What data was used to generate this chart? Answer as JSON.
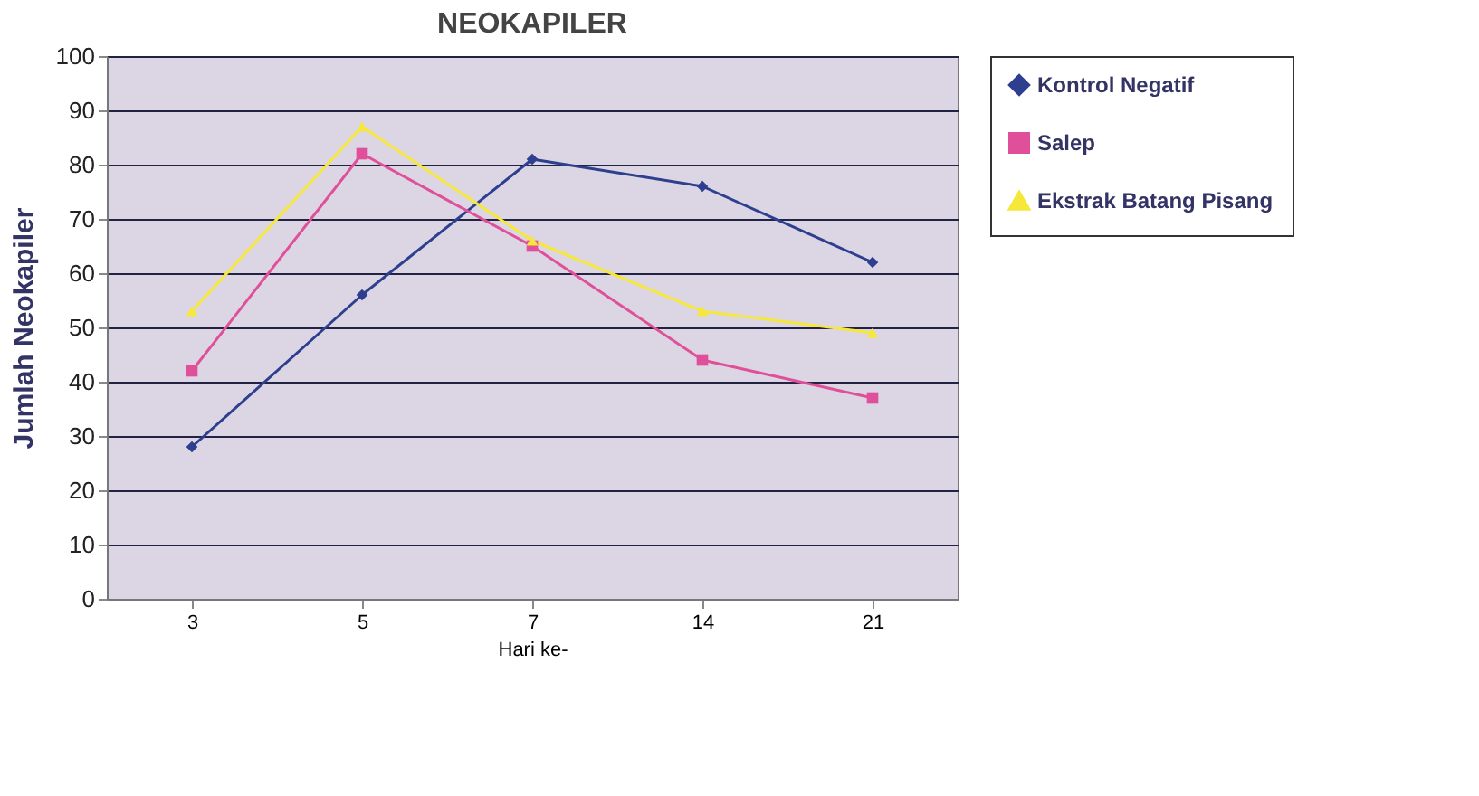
{
  "chart_data": {
    "type": "line",
    "title": "NEOKAPILER",
    "xlabel": "Hari ke-",
    "ylabel": "Jumlah Neokapiler",
    "categories": [
      "3",
      "5",
      "7",
      "14",
      "21"
    ],
    "series": [
      {
        "name": "Kontrol Negatif",
        "color": "#2f3f8f",
        "marker": "diamond",
        "values": [
          28,
          56,
          81,
          76,
          62
        ]
      },
      {
        "name": "Salep",
        "color": "#e0509a",
        "marker": "square",
        "values": [
          42,
          82,
          65,
          44,
          37
        ]
      },
      {
        "name": "Ekstrak Batang Pisang",
        "color": "#f5e83a",
        "marker": "triangle",
        "values": [
          53,
          87,
          66,
          53,
          49
        ]
      }
    ],
    "ylim": [
      0,
      100
    ],
    "yticks": [
      0,
      10,
      20,
      30,
      40,
      50,
      60,
      70,
      80,
      90,
      100
    ],
    "grid": "y",
    "legend": "right",
    "line_style": "solid"
  }
}
